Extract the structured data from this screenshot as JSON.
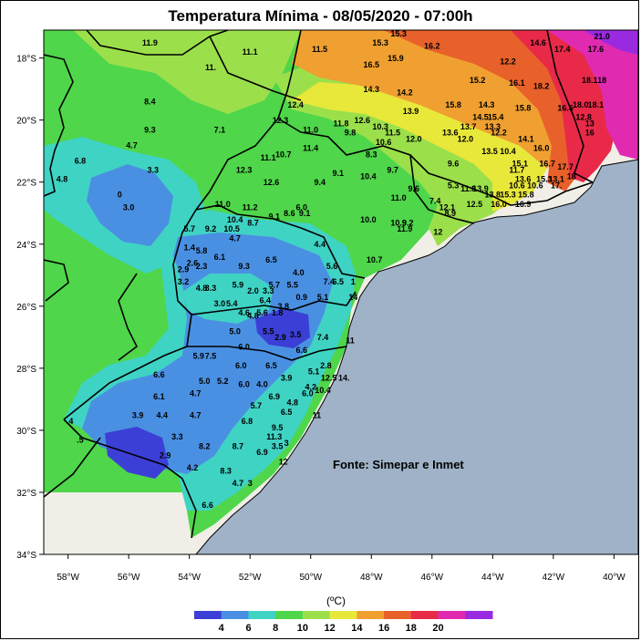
{
  "map": {
    "title": "Temperatura Mínima - 08/05/2020 - 07:00h",
    "credit": "Fonte: Simepar e Inmet",
    "lat_ticks": [
      "18°S",
      "20°S",
      "22°S",
      "24°S",
      "26°S",
      "28°S",
      "30°S",
      "32°S",
      "34°S"
    ],
    "lon_ticks": [
      "58°W",
      "56°W",
      "54°W",
      "52°W",
      "50°W",
      "48°W",
      "46°W",
      "44°W",
      "42°W",
      "40°W"
    ],
    "lat_values": [
      -18,
      -20,
      -22,
      -24,
      -26,
      -28,
      -30,
      -32,
      -34
    ],
    "lon_values": [
      -58,
      -56,
      -54,
      -52,
      -50,
      -48,
      -46,
      -44,
      -42,
      -40
    ],
    "lon_range": [
      -58.8,
      -39.2
    ],
    "lat_range": [
      -34.0,
      -17.1
    ],
    "colorbar": {
      "unit": "(ºC)",
      "tick_labels": [
        "4",
        "6",
        "8",
        "10",
        "12",
        "14",
        "16",
        "18",
        "20"
      ],
      "colors": [
        "#3c3fd6",
        "#4a90e2",
        "#3fd3c4",
        "#4fd64a",
        "#9be04b",
        "#e8e83a",
        "#f0a030",
        "#e8602a",
        "#e82a48",
        "#e02ab0",
        "#9a2ae0"
      ]
    },
    "colors": {
      "ocean": "#9fb2c7",
      "land_outside": "#f0eee6",
      "border": "#000000"
    },
    "stations": [
      {
        "lon": -55.3,
        "lat": -17.6,
        "value": "11.9"
      },
      {
        "lon": -52.0,
        "lat": -17.9,
        "value": "11.1"
      },
      {
        "lon": -53.3,
        "lat": -18.4,
        "value": "11."
      },
      {
        "lon": -49.7,
        "lat": -17.8,
        "value": "11.5"
      },
      {
        "lon": -47.7,
        "lat": -17.6,
        "value": "15.3"
      },
      {
        "lon": -47.1,
        "lat": -17.3,
        "value": "15.3"
      },
      {
        "lon": -46.0,
        "lat": -17.7,
        "value": "16.2"
      },
      {
        "lon": -42.5,
        "lat": -17.6,
        "value": "14.6"
      },
      {
        "lon": -41.7,
        "lat": -17.8,
        "value": "17.4"
      },
      {
        "lon": -40.4,
        "lat": -17.4,
        "value": "21.0"
      },
      {
        "lon": -40.6,
        "lat": -17.8,
        "value": "17.6"
      },
      {
        "lon": -47.2,
        "lat": -18.1,
        "value": "15.9"
      },
      {
        "lon": -48.0,
        "lat": -18.3,
        "value": "16.5"
      },
      {
        "lon": -43.5,
        "lat": -18.2,
        "value": "12.2"
      },
      {
        "lon": -44.5,
        "lat": -18.8,
        "value": "15.2"
      },
      {
        "lon": -43.2,
        "lat": -18.9,
        "value": "16.1"
      },
      {
        "lon": -42.4,
        "lat": -19.0,
        "value": "18.2"
      },
      {
        "lon": -40.8,
        "lat": -18.8,
        "value": "18.1"
      },
      {
        "lon": -40.4,
        "lat": -18.8,
        "value": "18"
      },
      {
        "lon": -48.0,
        "lat": -19.1,
        "value": "14.3"
      },
      {
        "lon": -46.9,
        "lat": -19.2,
        "value": "14.2"
      },
      {
        "lon": -55.3,
        "lat": -19.5,
        "value": "8.4"
      },
      {
        "lon": -50.5,
        "lat": -19.6,
        "value": "12.4"
      },
      {
        "lon": -45.3,
        "lat": -19.6,
        "value": "15.8"
      },
      {
        "lon": -44.2,
        "lat": -19.6,
        "value": "14.3"
      },
      {
        "lon": -43.0,
        "lat": -19.7,
        "value": "15.8"
      },
      {
        "lon": -41.6,
        "lat": -19.7,
        "value": "16.6"
      },
      {
        "lon": -41.1,
        "lat": -19.6,
        "value": "18.0"
      },
      {
        "lon": -40.6,
        "lat": -19.6,
        "value": "18.1"
      },
      {
        "lon": -46.7,
        "lat": -19.8,
        "value": "13.9"
      },
      {
        "lon": -48.3,
        "lat": -20.1,
        "value": "12.6"
      },
      {
        "lon": -49.0,
        "lat": -20.2,
        "value": "11.8"
      },
      {
        "lon": -44.4,
        "lat": -20.0,
        "value": "14.5"
      },
      {
        "lon": -43.9,
        "lat": -20.0,
        "value": "15.4"
      },
      {
        "lon": -41.0,
        "lat": -20.0,
        "value": "12.8"
      },
      {
        "lon": -51.0,
        "lat": -20.1,
        "value": "12.3"
      },
      {
        "lon": -44.0,
        "lat": -20.3,
        "value": "13.3"
      },
      {
        "lon": -44.8,
        "lat": -20.3,
        "value": "13.7"
      },
      {
        "lon": -40.8,
        "lat": -20.2,
        "value": "13"
      },
      {
        "lon": -55.3,
        "lat": -20.4,
        "value": "9.3"
      },
      {
        "lon": -53.0,
        "lat": -20.4,
        "value": "7.1"
      },
      {
        "lon": -50.0,
        "lat": -20.4,
        "value": "11.0"
      },
      {
        "lon": -48.7,
        "lat": -20.5,
        "value": "9.8"
      },
      {
        "lon": -47.7,
        "lat": -20.3,
        "value": "10.3"
      },
      {
        "lon": -47.3,
        "lat": -20.5,
        "value": "11.5"
      },
      {
        "lon": -47.6,
        "lat": -20.8,
        "value": "10.6"
      },
      {
        "lon": -46.6,
        "lat": -20.7,
        "value": "12.0"
      },
      {
        "lon": -45.4,
        "lat": -20.5,
        "value": "13.6"
      },
      {
        "lon": -43.8,
        "lat": -20.5,
        "value": "12.2"
      },
      {
        "lon": -40.8,
        "lat": -20.5,
        "value": "16"
      },
      {
        "lon": -55.9,
        "lat": -20.9,
        "value": "4.7"
      },
      {
        "lon": -44.9,
        "lat": -20.7,
        "value": "12.0"
      },
      {
        "lon": -42.9,
        "lat": -20.7,
        "value": "14.1"
      },
      {
        "lon": -50.0,
        "lat": -21.0,
        "value": "11.4"
      },
      {
        "lon": -48.0,
        "lat": -21.2,
        "value": "8.3"
      },
      {
        "lon": -44.1,
        "lat": -21.1,
        "value": "13.5"
      },
      {
        "lon": -43.5,
        "lat": -21.1,
        "value": "10.4"
      },
      {
        "lon": -42.4,
        "lat": -21.0,
        "value": "16.0"
      },
      {
        "lon": -57.6,
        "lat": -21.4,
        "value": "6.8"
      },
      {
        "lon": -51.4,
        "lat": -21.3,
        "value": "11.1"
      },
      {
        "lon": -50.9,
        "lat": -21.2,
        "value": "10.7"
      },
      {
        "lon": -45.3,
        "lat": -21.5,
        "value": "9.6"
      },
      {
        "lon": -43.1,
        "lat": -21.5,
        "value": "15.1"
      },
      {
        "lon": -42.2,
        "lat": -21.5,
        "value": "16.7"
      },
      {
        "lon": -41.6,
        "lat": -21.6,
        "value": "17.7"
      },
      {
        "lon": -55.2,
        "lat": -21.7,
        "value": "3.3"
      },
      {
        "lon": -52.2,
        "lat": -21.7,
        "value": "12.3"
      },
      {
        "lon": -49.1,
        "lat": -21.8,
        "value": "9.1"
      },
      {
        "lon": -47.3,
        "lat": -21.7,
        "value": "9.7"
      },
      {
        "lon": -43.2,
        "lat": -21.7,
        "value": "11.7"
      },
      {
        "lon": -41.4,
        "lat": -21.9,
        "value": "18"
      },
      {
        "lon": -58.2,
        "lat": -22.0,
        "value": "4.8"
      },
      {
        "lon": -51.3,
        "lat": -22.1,
        "value": "12.6"
      },
      {
        "lon": -49.7,
        "lat": -22.1,
        "value": "9.4"
      },
      {
        "lon": -48.1,
        "lat": -21.9,
        "value": "10.4"
      },
      {
        "lon": -43.0,
        "lat": -22.0,
        "value": "13.6"
      },
      {
        "lon": -42.3,
        "lat": -22.0,
        "value": "15.3"
      },
      {
        "lon": -41.9,
        "lat": -22.0,
        "value": "13.1"
      },
      {
        "lon": -46.6,
        "lat": -22.3,
        "value": "9.6"
      },
      {
        "lon": -45.3,
        "lat": -22.2,
        "value": "5.3"
      },
      {
        "lon": -44.8,
        "lat": -22.3,
        "value": "11.8"
      },
      {
        "lon": -44.4,
        "lat": -22.3,
        "value": "13.9"
      },
      {
        "lon": -43.2,
        "lat": -22.2,
        "value": "10.6"
      },
      {
        "lon": -42.6,
        "lat": -22.2,
        "value": "10.6"
      },
      {
        "lon": -41.9,
        "lat": -22.2,
        "value": "17."
      },
      {
        "lon": -56.3,
        "lat": -22.5,
        "value": "0"
      },
      {
        "lon": -47.1,
        "lat": -22.6,
        "value": "11.0"
      },
      {
        "lon": -45.9,
        "lat": -22.7,
        "value": "7.4"
      },
      {
        "lon": -44.0,
        "lat": -22.5,
        "value": "13.8"
      },
      {
        "lon": -43.5,
        "lat": -22.5,
        "value": "15.3"
      },
      {
        "lon": -42.9,
        "lat": -22.5,
        "value": "15.8"
      },
      {
        "lon": -56.0,
        "lat": -22.9,
        "value": "3.0"
      },
      {
        "lon": -52.9,
        "lat": -22.8,
        "value": "11.0"
      },
      {
        "lon": -52.0,
        "lat": -22.9,
        "value": "11.2"
      },
      {
        "lon": -50.3,
        "lat": -22.9,
        "value": "6.0"
      },
      {
        "lon": -45.5,
        "lat": -22.9,
        "value": "12.1"
      },
      {
        "lon": -44.6,
        "lat": -22.8,
        "value": "12.5"
      },
      {
        "lon": -43.8,
        "lat": -22.8,
        "value": "16.0"
      },
      {
        "lon": -43.0,
        "lat": -22.8,
        "value": "16.9"
      },
      {
        "lon": -50.7,
        "lat": -23.1,
        "value": "8.6"
      },
      {
        "lon": -50.2,
        "lat": -23.1,
        "value": "9.1"
      },
      {
        "lon": -51.2,
        "lat": -23.2,
        "value": "9.1"
      },
      {
        "lon": -52.5,
        "lat": -23.3,
        "value": "10.4"
      },
      {
        "lon": -51.9,
        "lat": -23.4,
        "value": "8.7"
      },
      {
        "lon": -45.4,
        "lat": -23.1,
        "value": "8.9"
      },
      {
        "lon": -48.1,
        "lat": -23.3,
        "value": "10.0"
      },
      {
        "lon": -47.1,
        "lat": -23.4,
        "value": "10.9"
      },
      {
        "lon": -46.8,
        "lat": -23.4,
        "value": "9.2"
      },
      {
        "lon": -46.9,
        "lat": -23.6,
        "value": "11.9"
      },
      {
        "lon": -54.0,
        "lat": -23.6,
        "value": "5.7"
      },
      {
        "lon": -53.3,
        "lat": -23.6,
        "value": "9.2"
      },
      {
        "lon": -52.6,
        "lat": -23.6,
        "value": "10.5"
      },
      {
        "lon": -45.8,
        "lat": -23.7,
        "value": "12"
      },
      {
        "lon": -52.5,
        "lat": -23.9,
        "value": "4.7"
      },
      {
        "lon": -49.7,
        "lat": -24.1,
        "value": "4.4"
      },
      {
        "lon": -54.0,
        "lat": -24.2,
        "value": "1.4"
      },
      {
        "lon": -53.6,
        "lat": -24.3,
        "value": "5.8"
      },
      {
        "lon": -53.0,
        "lat": -24.5,
        "value": "6.1"
      },
      {
        "lon": -51.3,
        "lat": -24.6,
        "value": "6.5"
      },
      {
        "lon": -47.9,
        "lat": -24.6,
        "value": "10.7"
      },
      {
        "lon": -53.9,
        "lat": -24.7,
        "value": "2.6"
      },
      {
        "lon": -53.6,
        "lat": -24.8,
        "value": "2.3"
      },
      {
        "lon": -52.2,
        "lat": -24.8,
        "value": "9.3"
      },
      {
        "lon": -49.3,
        "lat": -24.8,
        "value": "5.6"
      },
      {
        "lon": -54.2,
        "lat": -24.9,
        "value": "2.9"
      },
      {
        "lon": -50.4,
        "lat": -25.0,
        "value": "4.0"
      },
      {
        "lon": -54.2,
        "lat": -25.3,
        "value": "3.2"
      },
      {
        "lon": -53.6,
        "lat": -25.5,
        "value": "4.8"
      },
      {
        "lon": -53.3,
        "lat": -25.5,
        "value": "3.3"
      },
      {
        "lon": -52.4,
        "lat": -25.4,
        "value": "5.9"
      },
      {
        "lon": -51.2,
        "lat": -25.4,
        "value": "5.7"
      },
      {
        "lon": -50.6,
        "lat": -25.4,
        "value": "5.5"
      },
      {
        "lon": -49.4,
        "lat": -25.3,
        "value": "7.4"
      },
      {
        "lon": -49.1,
        "lat": -25.3,
        "value": "6.5"
      },
      {
        "lon": -48.6,
        "lat": -25.3,
        "value": "1"
      },
      {
        "lon": -51.9,
        "lat": -25.6,
        "value": "2.0"
      },
      {
        "lon": -51.4,
        "lat": -25.6,
        "value": "3.3"
      },
      {
        "lon": -50.3,
        "lat": -25.8,
        "value": "0.9"
      },
      {
        "lon": -49.6,
        "lat": -25.8,
        "value": "5.1"
      },
      {
        "lon": -48.6,
        "lat": -25.8,
        "value": "14"
      },
      {
        "lon": -51.5,
        "lat": -25.9,
        "value": "6.4"
      },
      {
        "lon": -53.0,
        "lat": -26.0,
        "value": "3.0"
      },
      {
        "lon": -52.6,
        "lat": -26.0,
        "value": "5.4"
      },
      {
        "lon": -50.9,
        "lat": -26.1,
        "value": "3.8"
      },
      {
        "lon": -52.2,
        "lat": -26.3,
        "value": "4.6"
      },
      {
        "lon": -51.6,
        "lat": -26.3,
        "value": "5.6"
      },
      {
        "lon": -51.1,
        "lat": -26.3,
        "value": "1.8"
      },
      {
        "lon": -51.9,
        "lat": -26.4,
        "value": "4.8"
      },
      {
        "lon": -52.5,
        "lat": -26.9,
        "value": "5.0"
      },
      {
        "lon": -51.4,
        "lat": -26.9,
        "value": "5.5"
      },
      {
        "lon": -51.0,
        "lat": -27.1,
        "value": "2.9"
      },
      {
        "lon": -50.5,
        "lat": -27.0,
        "value": "3.5"
      },
      {
        "lon": -49.6,
        "lat": -27.1,
        "value": "7.4"
      },
      {
        "lon": -48.7,
        "lat": -27.2,
        "value": "11"
      },
      {
        "lon": -52.2,
        "lat": -27.4,
        "value": "6.0"
      },
      {
        "lon": -50.3,
        "lat": -27.5,
        "value": "6.6"
      },
      {
        "lon": -53.7,
        "lat": -27.7,
        "value": "5.9"
      },
      {
        "lon": -53.3,
        "lat": -27.7,
        "value": "7.5"
      },
      {
        "lon": -52.3,
        "lat": -28.0,
        "value": "6.0"
      },
      {
        "lon": -51.3,
        "lat": -28.0,
        "value": "6.5"
      },
      {
        "lon": -49.5,
        "lat": -28.0,
        "value": "2.8"
      },
      {
        "lon": -55.0,
        "lat": -28.3,
        "value": "6.6"
      },
      {
        "lon": -53.5,
        "lat": -28.5,
        "value": "5.0"
      },
      {
        "lon": -52.9,
        "lat": -28.5,
        "value": "5.2"
      },
      {
        "lon": -52.2,
        "lat": -28.6,
        "value": "6.0"
      },
      {
        "lon": -51.6,
        "lat": -28.6,
        "value": "4.0"
      },
      {
        "lon": -50.8,
        "lat": -28.4,
        "value": "3.9"
      },
      {
        "lon": -49.9,
        "lat": -28.2,
        "value": "5.1"
      },
      {
        "lon": -49.4,
        "lat": -28.4,
        "value": "12.5"
      },
      {
        "lon": -48.9,
        "lat": -28.4,
        "value": "14."
      },
      {
        "lon": -50.0,
        "lat": -28.7,
        "value": "4.2"
      },
      {
        "lon": -49.6,
        "lat": -28.8,
        "value": "10.4"
      },
      {
        "lon": -50.1,
        "lat": -28.9,
        "value": "6.0"
      },
      {
        "lon": -55.0,
        "lat": -29.0,
        "value": "6.1"
      },
      {
        "lon": -53.8,
        "lat": -28.9,
        "value": "4.7"
      },
      {
        "lon": -51.2,
        "lat": -29.0,
        "value": "6.9"
      },
      {
        "lon": -51.8,
        "lat": -29.3,
        "value": "5.7"
      },
      {
        "lon": -50.6,
        "lat": -29.2,
        "value": "4.8"
      },
      {
        "lon": -50.8,
        "lat": -29.5,
        "value": "6.5"
      },
      {
        "lon": -55.7,
        "lat": -29.6,
        "value": "3.9"
      },
      {
        "lon": -54.9,
        "lat": -29.6,
        "value": "4.4"
      },
      {
        "lon": -53.8,
        "lat": -29.6,
        "value": "4.7"
      },
      {
        "lon": -52.1,
        "lat": -29.8,
        "value": "6.8"
      },
      {
        "lon": -49.8,
        "lat": -29.6,
        "value": "11"
      },
      {
        "lon": -51.1,
        "lat": -30.0,
        "value": "9.5"
      },
      {
        "lon": -57.9,
        "lat": -29.8,
        "value": "4"
      },
      {
        "lon": -54.4,
        "lat": -30.3,
        "value": "3.3"
      },
      {
        "lon": -51.2,
        "lat": -30.3,
        "value": "11.3"
      },
      {
        "lon": -57.6,
        "lat": -30.4,
        "value": ".5"
      },
      {
        "lon": -53.5,
        "lat": -30.6,
        "value": "8.2"
      },
      {
        "lon": -52.4,
        "lat": -30.6,
        "value": "8.7"
      },
      {
        "lon": -51.6,
        "lat": -30.8,
        "value": "6.9"
      },
      {
        "lon": -51.1,
        "lat": -30.6,
        "value": "3.5"
      },
      {
        "lon": -50.8,
        "lat": -30.5,
        "value": "3"
      },
      {
        "lon": -54.8,
        "lat": -30.9,
        "value": "2.9"
      },
      {
        "lon": -50.9,
        "lat": -31.1,
        "value": "12"
      },
      {
        "lon": -53.9,
        "lat": -31.3,
        "value": "4.2"
      },
      {
        "lon": -52.8,
        "lat": -31.4,
        "value": "8.3"
      },
      {
        "lon": -52.4,
        "lat": -31.8,
        "value": "4.7"
      },
      {
        "lon": -52.0,
        "lat": -31.8,
        "value": "3"
      },
      {
        "lon": -53.4,
        "lat": -32.5,
        "value": "6.6"
      }
    ]
  }
}
